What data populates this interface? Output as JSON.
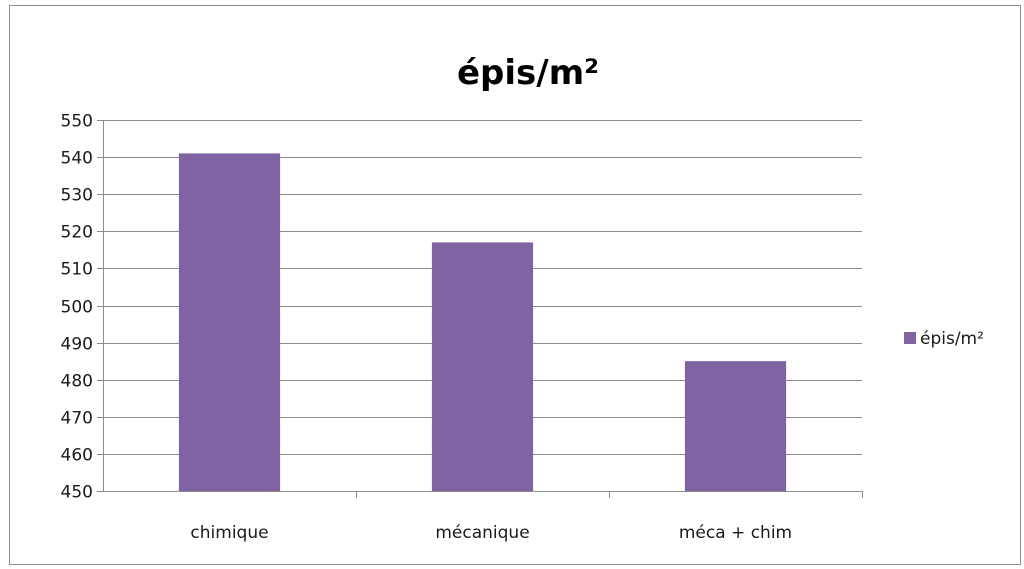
{
  "chart_data": {
    "type": "bar",
    "title": "épis/m²",
    "categories": [
      "chimique",
      "mécanique",
      "méca + chim"
    ],
    "series": [
      {
        "name": "épis/m²",
        "values": [
          541,
          517,
          485
        ],
        "color": "#8064a2"
      }
    ],
    "ylim": [
      450,
      550
    ],
    "ytick_step": 10,
    "grid": true,
    "legend": "right"
  }
}
